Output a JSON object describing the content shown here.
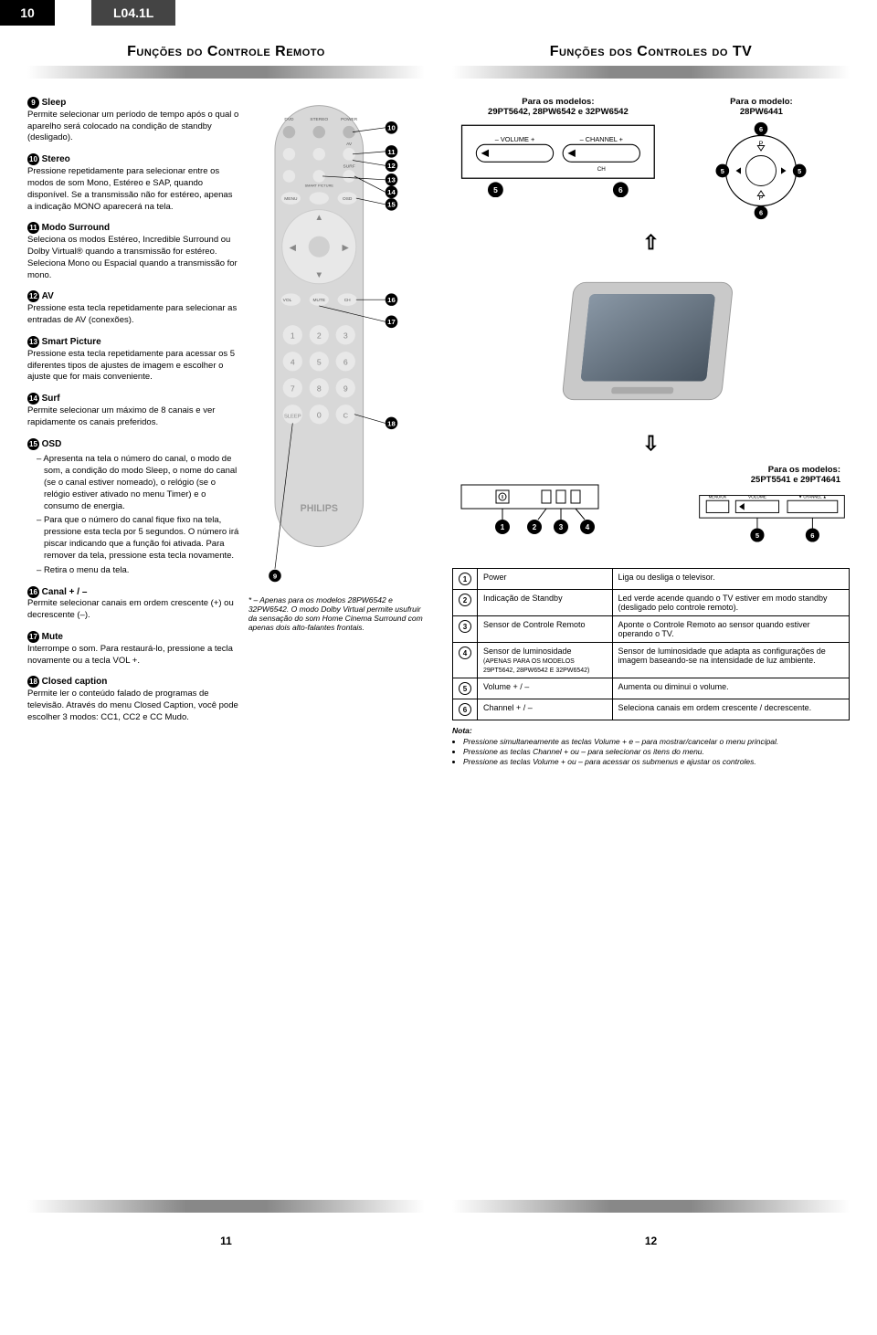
{
  "header": {
    "page_number": "10",
    "model_code": "L04.1L"
  },
  "left_panel": {
    "title": "Funções do Controle Remoto",
    "foot_page": "11",
    "footnote": "* – Apenas para os modelos 28PW6542 e 32PW6542. O modo Dolby Virtual permite usufruir da sensação do som Home Cinema Surround com apenas dois alto-falantes frontais.",
    "items": [
      {
        "num": "9",
        "title": "Sleep",
        "body": "Permite selecionar um período de tempo após o qual o aparelho será colocado na condição de standby (desligado)."
      },
      {
        "num": "10",
        "title": "Stereo",
        "body": "Pressione repetidamente para selecionar entre os modos de som Mono, Estéreo e SAP, quando disponível. Se a transmissão não for estéreo, apenas a indicação MONO aparecerá na tela."
      },
      {
        "num": "11",
        "title": "Modo Surround",
        "body": "Seleciona os modos Estéreo, Incredible Surround ou Dolby Virtual® quando a transmissão for estéreo. Seleciona Mono ou Espacial quando a transmissão for mono."
      },
      {
        "num": "12",
        "title": "AV",
        "body": "Pressione esta tecla repetidamente para selecionar as entradas de AV (conexões)."
      },
      {
        "num": "13",
        "title": "Smart Picture",
        "body": "Pressione esta tecla repetidamente para acessar os 5 diferentes tipos de ajustes de imagem e escolher o ajuste que for mais conveniente."
      },
      {
        "num": "14",
        "title": "Surf",
        "body": "Permite selecionar um máximo de 8 canais e ver rapidamente os canais preferidos."
      },
      {
        "num": "15",
        "title": "OSD",
        "body": "",
        "subs": [
          "Apresenta na tela o número do canal, o modo de som, a condição do modo Sleep, o nome do canal (se o canal estiver nomeado), o relógio (se o relógio estiver ativado no menu Timer) e o consumo de energia.",
          "Para que o número do canal fique fixo na tela, pressione esta tecla por 5 segundos. O número irá piscar indicando que a função foi ativada. Para remover da tela, pressione esta tecla novamente.",
          "Retira o menu da tela."
        ]
      },
      {
        "num": "16",
        "title": "Canal + / –",
        "body": "Permite selecionar canais em ordem crescente (+) ou decrescente (–)."
      },
      {
        "num": "17",
        "title": "Mute",
        "body": "Interrompe o som. Para restaurá-lo, pressione a tecla novamente ou a tecla VOL +."
      },
      {
        "num": "18",
        "title": "Closed caption",
        "body": "Permite ler o conteúdo falado de programas de televisão. Através do menu Closed Caption, você pode escolher 3 modos: CC1, CC2 e CC Mudo."
      }
    ],
    "remote_callouts": [
      "10",
      "11",
      "12",
      "13",
      "14",
      "15",
      "16",
      "17",
      "18",
      "9"
    ],
    "remote_buttons": {
      "left_col": [
        "DVD",
        "FORMAT",
        "SMART"
      ],
      "right_col": [
        "AV",
        "SURF",
        "OSD"
      ],
      "top": "POWER",
      "second": "STEREO",
      "smart_picture": "SMART PICTURE",
      "menu": "MENU",
      "vol_minus": "VOL −",
      "vol_plus": "+",
      "ch_label": "CH",
      "mute": "MUTE",
      "digits": [
        "1",
        "2",
        "3",
        "4",
        "5",
        "6",
        "7",
        "8",
        "9",
        "0"
      ],
      "clear": "C",
      "sleep": "SLEEP",
      "brand": "PHILIPS"
    }
  },
  "right_panel": {
    "title": "Funções dos Controles do TV",
    "foot_page": "12",
    "models_left": "Para os modelos:\n29PT5642, 28PW6542 e 32PW6542",
    "models_right": "Para o modelo:\n28PW6441",
    "models_bottom": "Para os modelos:\n25PT5541 e 29PT4641",
    "front_panel_labels": {
      "vol": "– VOLUME +",
      "ch": "– CHANNEL +",
      "chs": "CH"
    },
    "callouts_left": [
      "5",
      "6"
    ],
    "callouts_circle": [
      "5",
      "6",
      "5",
      "6"
    ],
    "led_callouts": [
      "1",
      "2",
      "3",
      "4"
    ],
    "bottom_callouts": [
      "5",
      "6"
    ],
    "bottom_labels": {
      "menu": "MENU/OK",
      "vol": "VOLUME",
      "ch": "▼ CHANNEL ▲"
    },
    "table": [
      {
        "n": "1",
        "name": "Power",
        "desc": "Liga ou desliga o televisor."
      },
      {
        "n": "2",
        "name": "Indicação de Standby",
        "desc": "Led verde acende quando o TV estiver em modo standby (desligado pelo controle remoto)."
      },
      {
        "n": "3",
        "name": "Sensor de Controle Remoto",
        "desc": "Aponte o Controle Remoto ao sensor quando estiver operando o TV."
      },
      {
        "n": "4",
        "name": "Sensor de luminosidade\n(APENAS PARA OS MODELOS 29PT5642, 28PW6542 E 32PW6542)",
        "desc": "Sensor de luminosidade que adapta as configurações de imagem baseando-se na intensidade de luz ambiente."
      },
      {
        "n": "5",
        "name": "Volume + / –",
        "desc": "Aumenta ou diminui o volume."
      },
      {
        "n": "6",
        "name": "Channel + / –",
        "desc": "Seleciona canais em ordem crescente / decrescente."
      }
    ],
    "nota": {
      "title": "Nota:",
      "lines": [
        "Pressione simultaneamente as teclas Volume + e – para mostrar/cancelar o menu principal.",
        "Pressione as teclas Channel + ou – para selecionar os itens do menu.",
        "Pressione as teclas Volume + ou – para acessar os submenus e ajustar os controles."
      ]
    }
  },
  "colors": {
    "remote_body": "#d8d8d8",
    "remote_btn": "#e8e8e8",
    "remote_btn_dark": "#b8b8b8",
    "tv_body": "#c0c0c0",
    "tv_screen": "#5b6a7a",
    "black": "#000000",
    "grey_med": "#888888",
    "grey_dark": "#444444"
  }
}
